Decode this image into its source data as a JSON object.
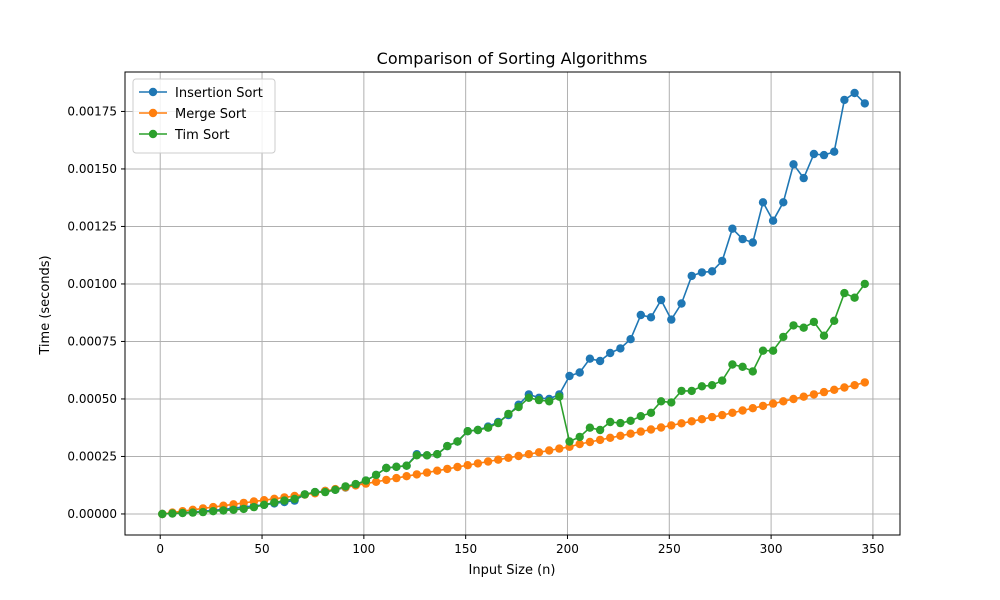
{
  "chart_data": {
    "type": "line",
    "title": "Comparison of Sorting Algorithms",
    "xlabel": "Input Size (n)",
    "ylabel": "Time (seconds)",
    "xlim": [
      -17.3,
      363.3
    ],
    "ylim": [
      -9.15e-05,
      0.0019215
    ],
    "xticks": [
      0,
      50,
      100,
      150,
      200,
      250,
      300,
      350
    ],
    "xtick_labels": [
      "0",
      "50",
      "100",
      "150",
      "200",
      "250",
      "300",
      "350"
    ],
    "yticks": [
      0,
      0.00025,
      0.0005,
      0.00075,
      0.001,
      0.00125,
      0.0015,
      0.00175
    ],
    "ytick_labels": [
      "0.00000",
      "0.00025",
      "0.00050",
      "0.00075",
      "0.00100",
      "0.00125",
      "0.00150",
      "0.00175"
    ],
    "grid": true,
    "legend_position": "top-left",
    "x": [
      1,
      6,
      11,
      16,
      21,
      26,
      31,
      36,
      41,
      46,
      51,
      56,
      61,
      66,
      71,
      76,
      81,
      86,
      91,
      96,
      101,
      106,
      111,
      116,
      121,
      126,
      131,
      136,
      141,
      146,
      151,
      156,
      161,
      166,
      171,
      176,
      181,
      186,
      191,
      196,
      201,
      206,
      211,
      216,
      221,
      226,
      231,
      236,
      241,
      246,
      251,
      256,
      261,
      266,
      271,
      276,
      281,
      286,
      291,
      296,
      301,
      306,
      311,
      316,
      321,
      326,
      331,
      336,
      341,
      346
    ],
    "series": [
      {
        "name": "Insertion Sort",
        "color": "#1f77b4",
        "values": [
          0.0,
          3e-06,
          5e-06,
          8e-06,
          1.2e-05,
          1.6e-05,
          2e-05,
          2.5e-05,
          3e-05,
          3.5e-05,
          4e-05,
          4.6e-05,
          5.2e-05,
          5.8e-05,
          8.5e-05,
          9.5e-05,
          0.0001,
          0.000105,
          0.000115,
          0.000125,
          0.000145,
          0.00017,
          0.0002,
          0.000205,
          0.00021,
          0.00026,
          0.000255,
          0.00026,
          0.000295,
          0.000315,
          0.00036,
          0.000365,
          0.00038,
          0.0004,
          0.00043,
          0.000475,
          0.00052,
          0.000505,
          0.0005,
          0.00052,
          0.0006,
          0.000615,
          0.000675,
          0.000665,
          0.0007,
          0.00072,
          0.00076,
          0.000865,
          0.000855,
          0.00093,
          0.000845,
          0.000915,
          0.001035,
          0.00105,
          0.001055,
          0.0011,
          0.00124,
          0.001195,
          0.00118,
          0.001355,
          0.001275,
          0.001355,
          0.00152,
          0.00146,
          0.001565,
          0.00156,
          0.001575,
          0.0018,
          0.00183,
          0.001785
        ]
      },
      {
        "name": "Merge Sort",
        "color": "#ff7f0e",
        "values": [
          0.0,
          6e-06,
          1.2e-05,
          1.8e-05,
          2.4e-05,
          3e-05,
          3.6e-05,
          4.2e-05,
          4.8e-05,
          5.4e-05,
          6e-05,
          6.6e-05,
          7.2e-05,
          7.8e-05,
          8.4e-05,
          9e-05,
          0.0001,
          0.000108,
          0.000116,
          0.000124,
          0.000132,
          0.00014,
          0.000148,
          0.000156,
          0.000164,
          0.000172,
          0.00018,
          0.000188,
          0.000196,
          0.000204,
          0.000212,
          0.00022,
          0.000228,
          0.000236,
          0.000244,
          0.000252,
          0.00026,
          0.000268,
          0.000276,
          0.000284,
          0.000292,
          0.000304,
          0.000313,
          0.000322,
          0.000331,
          0.00034,
          0.000349,
          0.000358,
          0.000367,
          0.000376,
          0.000385,
          0.000394,
          0.000403,
          0.000412,
          0.000421,
          0.00043,
          0.00044,
          0.00045,
          0.00046,
          0.00047,
          0.00048,
          0.00049,
          0.0005,
          0.00051,
          0.00052,
          0.00053,
          0.00054,
          0.00055,
          0.00056,
          0.000572
        ]
      },
      {
        "name": "Tim Sort",
        "color": "#2ca02c",
        "values": [
          0.0,
          2e-06,
          4e-06,
          6e-06,
          8e-06,
          1.2e-05,
          1.5e-05,
          1.8e-05,
          2.2e-05,
          3e-05,
          4e-05,
          5e-05,
          5.8e-05,
          6.5e-05,
          8.5e-05,
          9.5e-05,
          9.5e-05,
          0.000105,
          0.00012,
          0.00013,
          0.000145,
          0.00017,
          0.0002,
          0.000205,
          0.00021,
          0.000255,
          0.000255,
          0.00026,
          0.000295,
          0.000315,
          0.00036,
          0.000365,
          0.000375,
          0.000395,
          0.000435,
          0.000465,
          0.000505,
          0.000495,
          0.00049,
          0.00051,
          0.000315,
          0.000335,
          0.000375,
          0.000365,
          0.0004,
          0.000395,
          0.000405,
          0.000425,
          0.00044,
          0.00049,
          0.000485,
          0.000535,
          0.000535,
          0.000555,
          0.00056,
          0.00058,
          0.00065,
          0.00064,
          0.00062,
          0.00071,
          0.00071,
          0.00077,
          0.00082,
          0.00081,
          0.000835,
          0.000775,
          0.00084,
          0.00096,
          0.00094,
          0.001
        ]
      }
    ]
  }
}
